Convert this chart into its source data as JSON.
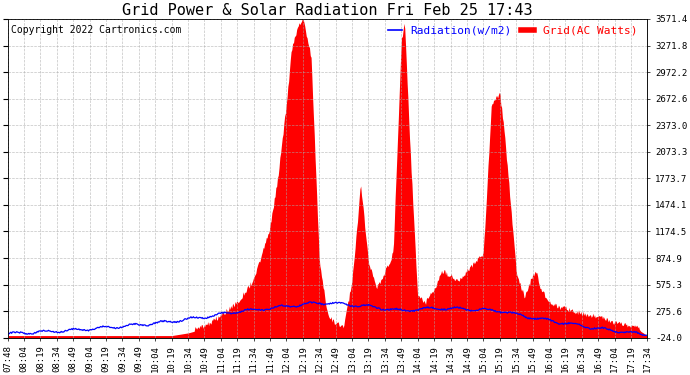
{
  "title": "Grid Power & Solar Radiation Fri Feb 25 17:43",
  "copyright": "Copyright 2022 Cartronics.com",
  "legend_radiation": "Radiation(w/m2)",
  "legend_grid": "Grid(AC Watts)",
  "radiation_color": "blue",
  "grid_color": "red",
  "background_color": "white",
  "yticks_right": [
    -24.0,
    275.6,
    575.3,
    874.9,
    1174.5,
    1474.1,
    1773.7,
    2073.3,
    2373.0,
    2672.6,
    2972.2,
    3271.8,
    3571.4
  ],
  "ymin": -24.0,
  "ymax": 3571.4,
  "xtick_labels": [
    "07:48",
    "08:04",
    "08:19",
    "08:34",
    "08:49",
    "09:04",
    "09:19",
    "09:34",
    "09:49",
    "10:04",
    "10:19",
    "10:34",
    "10:49",
    "11:04",
    "11:19",
    "11:34",
    "11:49",
    "12:04",
    "12:19",
    "12:34",
    "12:49",
    "13:04",
    "13:19",
    "13:34",
    "13:49",
    "14:04",
    "14:19",
    "14:34",
    "14:49",
    "15:04",
    "15:19",
    "15:34",
    "15:49",
    "16:04",
    "16:19",
    "16:34",
    "16:49",
    "17:04",
    "17:19",
    "17:34"
  ],
  "title_fontsize": 11,
  "copyright_fontsize": 7,
  "legend_fontsize": 8,
  "tick_fontsize": 6.5,
  "grid_line_color": "#aaaaaa",
  "grid_line_style": "--"
}
